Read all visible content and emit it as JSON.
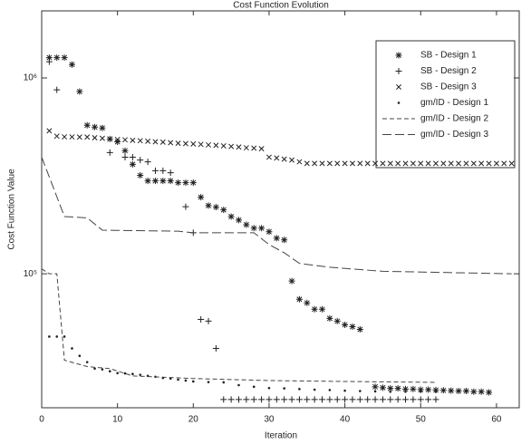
{
  "chart_data": {
    "type": "line",
    "title": "Cost Function Evolution",
    "x_label": "Iteration",
    "y_label": "Cost Function Value",
    "log_y": true,
    "legend": "upper right",
    "xlim": [
      0,
      63
    ],
    "xticks": [
      0,
      10,
      20,
      30,
      40,
      50,
      60
    ],
    "ylim": [
      20700,
      2200000
    ],
    "yticks": [
      {
        "value": 100000,
        "label": "10⁵"
      },
      {
        "value": 1000000,
        "label": "10⁶"
      }
    ],
    "series": [
      {
        "name": "SB - Design 1",
        "color": "#222222",
        "marker": "*",
        "linestyle": "none",
        "x": [
          1,
          2,
          3,
          4,
          5,
          6,
          7,
          8,
          9,
          10,
          11,
          12,
          13,
          14,
          15,
          16,
          17,
          18,
          19,
          20,
          21,
          22,
          23,
          24,
          25,
          26,
          27,
          28,
          29,
          30,
          31,
          32,
          33,
          34,
          35,
          36,
          37,
          38,
          39,
          40,
          41,
          42,
          44,
          45,
          46,
          47,
          48,
          49,
          50,
          51,
          52,
          53,
          54,
          55,
          56,
          57,
          58,
          59
        ],
        "values": [
          1270000,
          1270000,
          1270000,
          1170000,
          852000,
          573000,
          561000,
          555000,
          488000,
          472000,
          425000,
          362000,
          318000,
          298000,
          298000,
          298000,
          298000,
          292000,
          292000,
          292000,
          246000,
          223000,
          219000,
          212000,
          196000,
          188000,
          178000,
          171000,
          171000,
          164000,
          152000,
          149000,
          91800,
          74100,
          71000,
          65900,
          65900,
          59200,
          57300,
          54900,
          53700,
          52000,
          26500,
          26200,
          26000,
          26000,
          25800,
          25800,
          25600,
          25600,
          25500,
          25400,
          25300,
          25200,
          25200,
          25000,
          25000,
          24800
        ]
      },
      {
        "name": "SB - Design 2",
        "color": "#222222",
        "marker": "+",
        "linestyle": "none",
        "x": [
          1,
          2,
          9,
          11,
          12,
          13,
          14,
          15,
          16,
          17,
          19,
          20,
          21,
          22,
          23,
          24,
          25,
          26,
          27,
          28,
          29,
          30,
          31,
          32,
          33,
          34,
          35,
          36,
          37,
          38,
          39,
          40,
          41,
          42,
          43,
          44,
          45,
          46,
          47,
          48,
          49,
          50,
          51,
          52
        ],
        "values": [
          1210000,
          870000,
          416000,
          394000,
          394000,
          381000,
          373000,
          336000,
          336000,
          328000,
          220000,
          162000,
          58500,
          57300,
          41600,
          22800,
          22800,
          22800,
          22800,
          22800,
          22800,
          22800,
          22800,
          22800,
          22800,
          22800,
          22800,
          22800,
          22800,
          22800,
          22800,
          22800,
          22800,
          22800,
          22800,
          22800,
          22800,
          22800,
          22800,
          22800,
          22800,
          22800,
          22800,
          22800
        ]
      },
      {
        "name": "SB - Design 3",
        "color": "#222222",
        "marker": "x",
        "linestyle": "none",
        "x": [
          1,
          2,
          3,
          4,
          5,
          6,
          7,
          8,
          9,
          10,
          11,
          12,
          13,
          14,
          15,
          16,
          17,
          18,
          19,
          20,
          21,
          22,
          23,
          24,
          25,
          26,
          27,
          28,
          29,
          30,
          31,
          32,
          33,
          34,
          35,
          36,
          37,
          38,
          39,
          40,
          41,
          42,
          43,
          44,
          45,
          46,
          47,
          48,
          49,
          50,
          51,
          52,
          53,
          54,
          55,
          56,
          57,
          58,
          59,
          60,
          61,
          62
        ],
        "values": [
          537000,
          504000,
          500000,
          500000,
          499000,
          499000,
          495000,
          492000,
          488000,
          485000,
          483000,
          480000,
          478000,
          475000,
          472000,
          470000,
          467000,
          464000,
          462000,
          460000,
          458000,
          455000,
          453000,
          450000,
          447000,
          444000,
          440000,
          438000,
          435000,
          394000,
          390000,
          385000,
          381000,
          373000,
          366000,
          366000,
          366000,
          366000,
          366000,
          366000,
          366000,
          366000,
          366000,
          366000,
          366000,
          366000,
          366000,
          366000,
          366000,
          366000,
          366000,
          366000,
          366000,
          366000,
          366000,
          366000,
          366000,
          366000,
          366000,
          366000,
          366000,
          366000
        ]
      },
      {
        "name": "gm/ID - Design 1",
        "color": "#222222",
        "marker": ".",
        "linestyle": "none",
        "x": [
          1,
          2,
          3,
          4,
          5,
          6,
          7,
          8,
          9,
          10,
          11,
          12,
          13,
          14,
          15,
          16,
          17,
          18,
          19,
          20,
          22,
          24,
          26,
          28,
          30,
          32,
          34,
          36,
          38,
          40,
          42,
          44,
          46,
          48,
          50,
          52
        ],
        "values": [
          47800,
          47800,
          47800,
          41600,
          38100,
          35400,
          32800,
          32500,
          31800,
          31100,
          31000,
          30800,
          30500,
          30100,
          29800,
          29400,
          29200,
          28800,
          28500,
          28200,
          28000,
          27900,
          27000,
          26500,
          26100,
          26000,
          25800,
          25600,
          25500,
          25300,
          25200,
          25100,
          25000,
          25000,
          25000,
          25000
        ]
      },
      {
        "name": "gm/ID - Design 2",
        "color": "#444444",
        "marker": "none",
        "linestyle": "dashed",
        "x": [
          0,
          1,
          2,
          3,
          6,
          9,
          12,
          20,
          30,
          40,
          52
        ],
        "values": [
          106000,
          100000,
          100000,
          36200,
          33600,
          32800,
          30100,
          29200,
          28500,
          28200,
          27900
        ]
      },
      {
        "name": "gm/ID - Design 3",
        "color": "#444444",
        "marker": "none",
        "linestyle": "longdash",
        "x": [
          0,
          3,
          6,
          8,
          18,
          20,
          28,
          30,
          32,
          34,
          38,
          45,
          62
        ],
        "values": [
          394000,
          196000,
          193000,
          167000,
          165000,
          162000,
          162000,
          141000,
          128000,
          113000,
          108000,
          103000,
          100000
        ]
      }
    ]
  }
}
